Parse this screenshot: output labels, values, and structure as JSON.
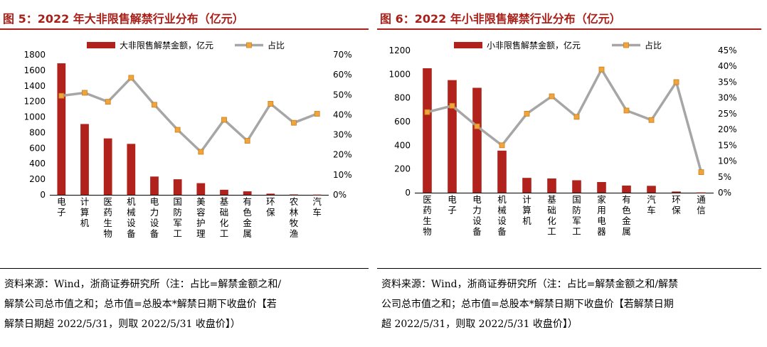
{
  "colors": {
    "title": "#a8201a",
    "bar": "#b0221b",
    "line": "#a6a6a6",
    "marker": "#f0a53c",
    "marker_stroke": "#c77f1f"
  },
  "figures": [
    {
      "title": "图 5：2022 年大非限售解禁行业分布（亿元）",
      "source": [
        "资料来源：Wind，浙商证券研究所（注：占比=解禁金额之和/",
        "解禁公司总市值之和；总市值=总股本*解禁日期下收盘价【若",
        "解禁日期超 2022/5/31，则取 2022/5/31 收盘价】）"
      ]
    },
    {
      "title": "图 6：2022 年小非限售解禁行业分布（亿元）",
      "source": [
        "资料来源：Wind，浙商证券研究所（注：占比=解禁金额之和/解禁",
        "公司总市值之和；总市值=总股本*解禁日期下收盘价【若解禁日期",
        "超 2022/5/31，则取 2022/5/31 收盘价】）"
      ]
    }
  ],
  "chart_data": [
    {
      "type": "bar",
      "title": "2022 年大非限售解禁行业分布（亿元）",
      "categories": [
        "电子",
        "计算机",
        "医药生物",
        "机械设备",
        "电力设备",
        "国防军工",
        "美容护理",
        "基础化工",
        "有色金属",
        "环保",
        "农林牧渔",
        "汽车"
      ],
      "series": [
        {
          "name": "大非限售解禁金额，亿元",
          "type": "bar",
          "axis": "left",
          "values": [
            1690,
            910,
            725,
            655,
            235,
            200,
            150,
            65,
            45,
            15,
            5,
            3
          ]
        },
        {
          "name": "占比",
          "type": "line",
          "axis": "right",
          "unit": "%",
          "values": [
            49.5,
            51,
            46.5,
            58.5,
            45,
            32.5,
            21.5,
            37.5,
            27,
            45.5,
            36,
            40.5
          ]
        }
      ],
      "ylim_left": [
        0,
        1800
      ],
      "yticks_left": [
        "0",
        "200",
        "400",
        "600",
        "800",
        "1000",
        "1200",
        "1400",
        "1600",
        "1800"
      ],
      "ylim_right": [
        0,
        70
      ],
      "yticks_right": [
        "0%",
        "10%",
        "20%",
        "30%",
        "40%",
        "50%",
        "60%",
        "70%"
      ],
      "legend": "top"
    },
    {
      "type": "bar",
      "title": "2022 年小非限售解禁行业分布（亿元）",
      "categories": [
        "医药生物",
        "电子",
        "电力设备",
        "机械设备",
        "计算机",
        "基础化工",
        "国防军工",
        "家用电器",
        "有色金属",
        "汽车",
        "环保",
        "通信"
      ],
      "series": [
        {
          "name": "小非限售解禁金额，亿元",
          "type": "bar",
          "axis": "left",
          "values": [
            1050,
            950,
            885,
            355,
            125,
            120,
            105,
            90,
            60,
            58,
            10,
            2
          ]
        },
        {
          "name": "占比",
          "type": "line",
          "axis": "right",
          "unit": "%",
          "values": [
            25.5,
            27.5,
            21,
            15,
            25,
            30.5,
            24,
            39,
            26,
            23,
            35,
            6.5
          ]
        }
      ],
      "ylim_left": [
        0,
        1200
      ],
      "yticks_left": [
        "0",
        "200",
        "400",
        "600",
        "800",
        "1000",
        "1200"
      ],
      "ylim_right": [
        0,
        45
      ],
      "yticks_right": [
        "0%",
        "5%",
        "10%",
        "15%",
        "20%",
        "25%",
        "30%",
        "35%",
        "40%",
        "45%"
      ],
      "legend": "top"
    }
  ]
}
